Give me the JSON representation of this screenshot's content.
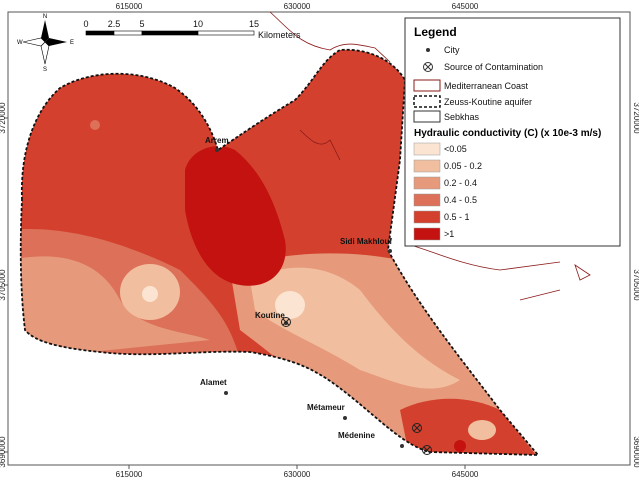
{
  "compass": {
    "n": "N",
    "s": "S",
    "e": "E",
    "w": "W"
  },
  "scale_bar": {
    "ticks": [
      0,
      2.5,
      5,
      10,
      15
    ],
    "unit": "Kilometers"
  },
  "x_ticks": [
    615000,
    630000,
    645000
  ],
  "y_ticks": [
    3720000,
    3705000,
    3690000
  ],
  "cities": [
    "Arrem",
    "Sidi Makhlouf",
    "Koutine",
    "Alamet",
    "Métameur",
    "Médenine"
  ],
  "legend": {
    "title": "Legend",
    "city": "City",
    "source": "Source of Contamination",
    "coast": "Mediterranean Coast",
    "aquifer": "Zeuss-Koutine aquifer",
    "sebkhas": "Sebkhas",
    "conductivity_title": "Hydraulic conductivity (C) (x 10e-3 m/s)",
    "classes": [
      {
        "label": "<0.05",
        "color": "#fbe4d2"
      },
      {
        "label": "0.05 - 0.2",
        "color": "#f1bf9f"
      },
      {
        "label": "0.2 - 0.4",
        "color": "#e69a7b"
      },
      {
        "label": "0.4 - 0.5",
        "color": "#dc7058"
      },
      {
        "label": "0.5 - 1",
        "color": "#d3412e"
      },
      {
        "label": ">1",
        "color": "#c3120f"
      }
    ]
  }
}
